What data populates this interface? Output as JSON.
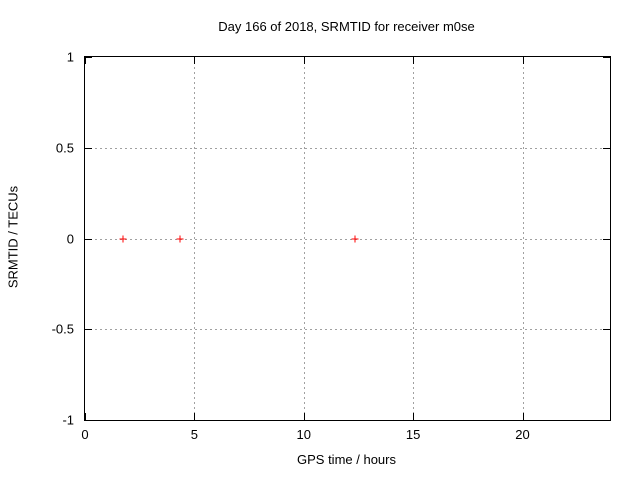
{
  "chart_data": {
    "type": "scatter",
    "title": "Day 166 of 2018, SRMTID for receiver m0se",
    "xlabel": "GPS time / hours",
    "ylabel": "SRMTID / TECUs",
    "xlim": [
      0,
      24
    ],
    "ylim": [
      -1,
      1
    ],
    "xticks": [
      0,
      5,
      10,
      15,
      20
    ],
    "yticks": [
      -1,
      -0.5,
      0,
      0.5,
      1
    ],
    "grid": true,
    "legend": "none",
    "marker": "plus",
    "marker_color": "#ff0000",
    "grid_color": "#a0a0a0",
    "border_color": "#000000",
    "points": [
      {
        "x": 1.7,
        "y": 0
      },
      {
        "x": 4.3,
        "y": 0
      },
      {
        "x": 12.3,
        "y": 0
      }
    ]
  }
}
